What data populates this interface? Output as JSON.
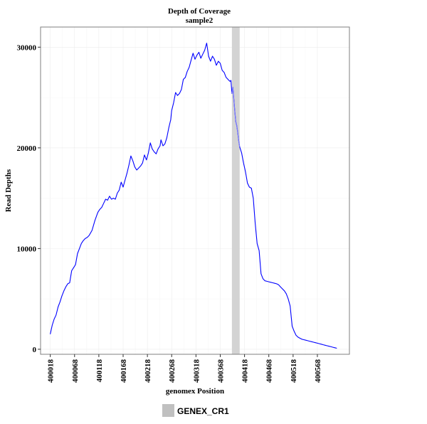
{
  "chart_data": {
    "type": "line",
    "title": "Depth of Coverage",
    "subtitle": "sample2",
    "xlabel": "genomex Position",
    "ylabel": "Read Depths",
    "xlim": [
      399998,
      400634
    ],
    "ylim": [
      -500,
      32000
    ],
    "x_ticks": [
      400018,
      400068,
      400118,
      400168,
      400218,
      400268,
      400318,
      400368,
      400418,
      400468,
      400518,
      400568
    ],
    "x_tick_labels": [
      "400018",
      "400068",
      "400118",
      "400168",
      "400218",
      "400268",
      "400318",
      "400368",
      "400418",
      "400468",
      "400518",
      "400568"
    ],
    "y_ticks": [
      0,
      10000,
      20000,
      30000
    ],
    "y_tick_labels": [
      "0",
      "10000",
      "20000",
      "30000"
    ],
    "grid": true,
    "legend_position": "bottom",
    "highlight_region": {
      "label": "GENEX_CR1",
      "x_start": 400392,
      "x_end": 400408,
      "color": "#d3d3d3"
    },
    "line_color": "#0000ff",
    "highlight_line_color": "#7b7bff",
    "series": [
      {
        "x": [
          400018,
          400022,
          400026,
          400030,
          400034,
          400038,
          400042,
          400046,
          400050,
          400054,
          400058,
          400062,
          400066,
          400070,
          400074,
          400078,
          400082,
          400086,
          400090,
          400094,
          400098,
          400104,
          400110,
          400116,
          400120,
          400124,
          400128,
          400132,
          400136,
          400140,
          400144,
          400148,
          400152,
          400156,
          400160,
          400164,
          400168,
          400172,
          400176,
          400180,
          400184,
          400188,
          400192,
          400196,
          400200,
          400204,
          400208,
          400212,
          400216,
          400220,
          400224,
          400228,
          400232,
          400236,
          400240,
          400244,
          400246,
          400250,
          400254,
          400258,
          400262,
          400266,
          400268,
          400272,
          400276,
          400280,
          400284,
          400288,
          400292,
          400296,
          400300,
          400304,
          400308,
          400312,
          400316,
          400320,
          400324,
          400328,
          400332,
          400336,
          400340,
          400344,
          400348,
          400352,
          400356,
          400360,
          400364,
          400368,
          400372,
          400376,
          400380,
          400384,
          400388,
          400390,
          400392,
          400394,
          400396,
          400398,
          400400,
          400402,
          400404,
          400406,
          400408,
          400412,
          400416,
          400420,
          400424,
          400428,
          400432,
          400436,
          400440,
          400444,
          400448,
          400452,
          400456,
          400460,
          400464,
          400468,
          400472,
          400476,
          400480,
          400484,
          400488,
          400492,
          400496,
          400500,
          400504,
          400508,
          400512,
          400516,
          400520,
          400524,
          400528,
          400532,
          400536,
          400540,
          400544,
          400548,
          400552,
          400556,
          400560,
          400564,
          400568,
          400572,
          400576,
          400580,
          400584,
          400588,
          400592,
          400596,
          400600,
          400604,
          400608
        ],
        "y": [
          1500,
          2400,
          3000,
          3400,
          4200,
          4700,
          5300,
          5800,
          6200,
          6500,
          6600,
          7800,
          8100,
          8400,
          9500,
          10000,
          10500,
          10800,
          11000,
          11100,
          11300,
          11800,
          12800,
          13600,
          13900,
          14100,
          14500,
          14900,
          14800,
          15200,
          14900,
          15000,
          14900,
          15500,
          15800,
          16600,
          16100,
          16800,
          17500,
          18300,
          19200,
          18700,
          18100,
          17800,
          18000,
          18200,
          18500,
          19300,
          18800,
          19500,
          20500,
          19900,
          19600,
          19400,
          19900,
          20200,
          20800,
          20200,
          20400,
          21000,
          22000,
          22800,
          23700,
          24500,
          25500,
          25200,
          25400,
          25800,
          26800,
          27000,
          27600,
          28000,
          28700,
          29400,
          28800,
          29200,
          29500,
          28900,
          29300,
          29700,
          30400,
          29100,
          28600,
          29100,
          28800,
          28200,
          28600,
          28400,
          27700,
          27500,
          27000,
          26800,
          26600,
          26700,
          25400,
          26000,
          24800,
          23600,
          22600,
          22200,
          21500,
          20700,
          20100,
          19500,
          18500,
          17600,
          16500,
          16100,
          16000,
          15000,
          12500,
          10500,
          9800,
          7500,
          7000,
          6800,
          6750,
          6700,
          6650,
          6600,
          6550,
          6500,
          6400,
          6200,
          6000,
          5800,
          5500,
          5000,
          4300,
          2300,
          1800,
          1400,
          1200,
          1100,
          1000,
          950,
          900,
          850,
          800,
          750,
          700,
          650,
          600,
          550,
          500,
          450,
          400,
          350,
          300,
          250,
          200,
          150,
          100
        ]
      }
    ]
  }
}
